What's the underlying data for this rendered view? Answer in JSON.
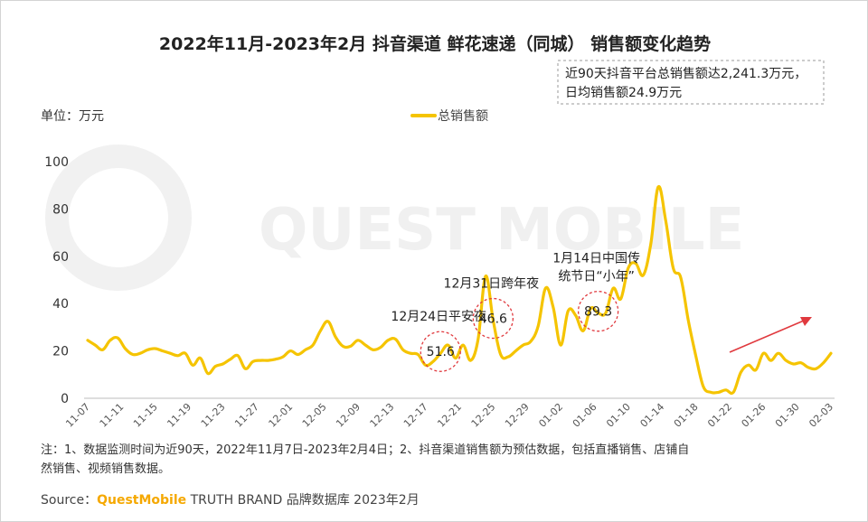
{
  "title": "2022年11月-2023年2月 抖音渠道 鲜花速递（同城） 销售额变化趋势",
  "callout": {
    "line1": "近90天抖音平台总销售额达2,241.3万元，",
    "line2": "日均销售额24.9万元"
  },
  "unit_label": "单位：万元",
  "watermark": "QUEST MOBILE",
  "note": {
    "line1": "注：1、数据监测时间为近90天，2022年11月7日-2023年2月4日；2、抖音渠道销售额为预估数据，包括直播销售、店铺自",
    "line2": "然销售、视频销售数据。"
  },
  "source": {
    "prefix": "Source：",
    "brand": "QuestMobile",
    "suffix": " TRUTH BRAND 品牌数据库 2023年2月"
  },
  "colors": {
    "line": "#f5c400",
    "circle": "#e0393e",
    "arrow": "#e0393e",
    "brand": "#f5a800"
  },
  "annotations": [
    {
      "date_label": "12-24",
      "label_lines": [
        "12月24日平安夜"
      ],
      "value_text": "51.6"
    },
    {
      "date_label": "12-31",
      "label_lines": [
        "12月31日跨年夜"
      ],
      "value_text": "46.6"
    },
    {
      "date_label": "01-14",
      "label_lines": [
        "1月14日中国传",
        "统节日“小年”"
      ],
      "value_text": "89.3"
    }
  ],
  "chart_data": {
    "type": "line",
    "series": [
      {
        "name": "总销售额",
        "values": [
          24.5,
          22.5,
          20.5,
          24.5,
          25.5,
          21,
          18.5,
          19,
          20.5,
          21,
          20,
          19,
          18,
          19,
          14,
          17,
          10.5,
          13.5,
          14.5,
          16.5,
          18,
          12.5,
          15.5,
          16,
          16,
          16.5,
          17.5,
          20,
          18.5,
          20.5,
          22.5,
          28.5,
          32.5,
          26,
          22,
          22,
          24.5,
          22.5,
          20.5,
          21.5,
          24.5,
          25,
          20.5,
          19,
          18.5,
          14,
          15.5,
          19,
          22.5,
          17,
          22.5,
          16,
          25,
          51.6,
          33,
          18.5,
          17.5,
          20,
          22.5,
          24,
          30.5,
          46.6,
          38.5,
          22.5,
          37,
          35,
          28.5,
          38,
          36,
          36,
          46.5,
          42,
          55,
          57,
          52,
          65,
          89.3,
          75,
          55,
          51,
          33,
          18,
          5,
          2.5,
          2.5,
          3.5,
          2.5,
          11,
          14,
          12,
          19,
          16,
          19,
          16,
          14.5,
          15,
          13,
          12.5,
          15,
          19
        ]
      }
    ],
    "x_tick_labels": [
      "11-07",
      "11-11",
      "11-15",
      "11-19",
      "11-23",
      "11-27",
      "12-01",
      "12-05",
      "12-09",
      "12-13",
      "12-17",
      "12-21",
      "12-25",
      "12-29",
      "01-02",
      "01-06",
      "01-10",
      "01-14",
      "01-18",
      "01-22",
      "01-26",
      "01-30",
      "02-03"
    ],
    "y_ticks": [
      0,
      20,
      40,
      60,
      80,
      100
    ],
    "ylim": [
      0,
      100
    ],
    "title": "2022年11月-2023年2月 抖音渠道 鲜花速递（同城） 销售额变化趋势",
    "ylabel": "单位：万元",
    "legend_position": "top-center",
    "grid": false
  }
}
